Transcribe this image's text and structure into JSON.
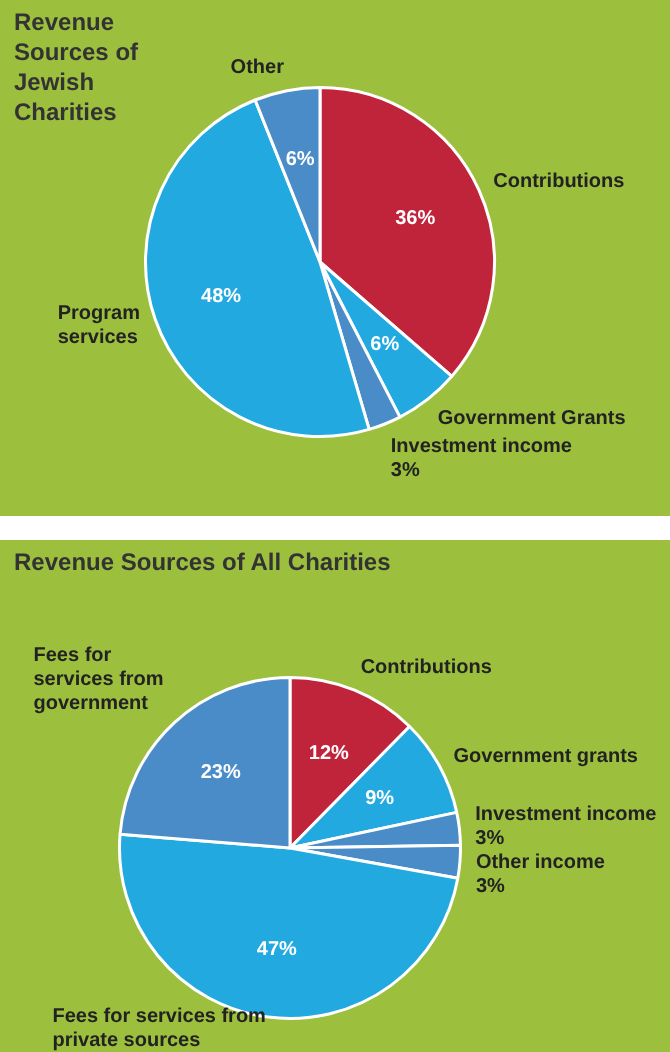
{
  "chart_data": [
    {
      "type": "pie",
      "title": "Revenue Sources of Jewish Charities",
      "categories": [
        "Contributions",
        "Government Grants",
        "Investment income",
        "Program services",
        "Other"
      ],
      "values": [
        36,
        6,
        3,
        48,
        6
      ],
      "colors": [
        "#c0243a",
        "#22a9e0",
        "#4a8cc8",
        "#22a9e0",
        "#4a8cc8"
      ],
      "value_labels": [
        "36%",
        "6%",
        "3%",
        "48%",
        "6%"
      ],
      "legend": false
    },
    {
      "type": "pie",
      "title": "Revenue Sources of All Charities",
      "categories": [
        "Contributions",
        "Government grants",
        "Investment income",
        "Other income",
        "Fees for services from private sources",
        "Fees for services from government"
      ],
      "values": [
        12,
        9,
        3,
        3,
        47,
        23
      ],
      "colors": [
        "#c0243a",
        "#22a9e0",
        "#4a8cc8",
        "#4a8cc8",
        "#22a9e0",
        "#4a8cc8"
      ],
      "value_labels": [
        "12%",
        "9%",
        "3%",
        "3%",
        "47%",
        "23%"
      ],
      "legend": false
    }
  ]
}
